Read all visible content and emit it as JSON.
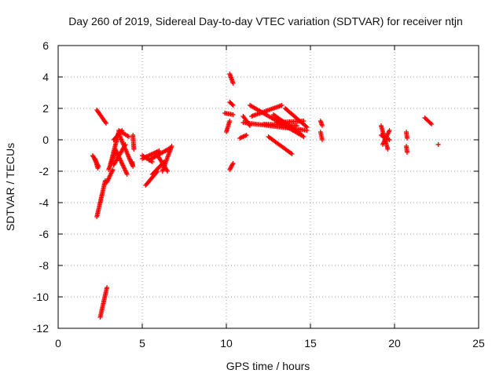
{
  "chart_data": {
    "type": "scatter",
    "title": "Day 260 of 2019, Sidereal Day-to-day VTEC variation (SDTVAR) for receiver ntjn",
    "xlabel": "GPS time / hours",
    "ylabel": "SDTVAR / TECUs",
    "xlim": [
      0,
      25
    ],
    "ylim": [
      -12,
      6
    ],
    "xticks": [
      0,
      5,
      10,
      15,
      20,
      25
    ],
    "yticks": [
      -12,
      -10,
      -8,
      -6,
      -4,
      -2,
      0,
      2,
      4,
      6
    ],
    "xtick_labels": [
      "0",
      "5",
      "10",
      "15",
      "20",
      "25"
    ],
    "ytick_labels": [
      "-12",
      "-10",
      "-8",
      "-6",
      "-4",
      "-2",
      "0",
      "2",
      "4",
      "6"
    ],
    "grid": true,
    "legend": "none",
    "marker": "+",
    "color": "#ff0000",
    "series": [
      {
        "name": "sdtvar",
        "segments": [
          {
            "x": [
              2.05,
              2.4
            ],
            "y": [
              -1.0,
              -1.7
            ]
          },
          {
            "x": [
              2.2,
              2.35
            ],
            "y": [
              -1.2,
              -1.8
            ]
          },
          {
            "x": [
              2.3,
              2.85
            ],
            "y": [
              1.9,
              1.05
            ]
          },
          {
            "x": [
              2.3,
              2.8
            ],
            "y": [
              -4.9,
              -2.6
            ]
          },
          {
            "x": [
              2.5,
              2.9
            ],
            "y": [
              -11.3,
              -9.4
            ]
          },
          {
            "x": [
              2.9,
              3.25
            ],
            "y": [
              -2.7,
              -1.9
            ]
          },
          {
            "x": [
              3.0,
              3.4
            ],
            "y": [
              -1.9,
              -0.8
            ]
          },
          {
            "x": [
              3.1,
              3.6
            ],
            "y": [
              -1.6,
              0.5
            ]
          },
          {
            "x": [
              3.3,
              3.8
            ],
            "y": [
              0.0,
              0.6
            ]
          },
          {
            "x": [
              3.6,
              4.2
            ],
            "y": [
              0.6,
              0.2
            ]
          },
          {
            "x": [
              3.4,
              4.1
            ],
            "y": [
              -0.6,
              -2.2
            ]
          },
          {
            "x": [
              3.6,
              4.4
            ],
            "y": [
              0.4,
              -1.6
            ]
          },
          {
            "x": [
              3.3,
              4.0
            ],
            "y": [
              -1.6,
              -0.3
            ]
          },
          {
            "x": [
              4.45,
              4.5
            ],
            "y": [
              0.3,
              -0.6
            ]
          },
          {
            "x": [
              4.4,
              4.45
            ],
            "y": [
              -1.4,
              -1.7
            ]
          },
          {
            "x": [
              5.0,
              5.6
            ],
            "y": [
              -1.0,
              -1.4
            ]
          },
          {
            "x": [
              5.2,
              5.9
            ],
            "y": [
              -2.9,
              -2.0
            ]
          },
          {
            "x": [
              5.4,
              6.7
            ],
            "y": [
              -1.3,
              -0.5
            ]
          },
          {
            "x": [
              5.8,
              6.5
            ],
            "y": [
              -0.8,
              -2.0
            ]
          },
          {
            "x": [
              5.6,
              6.3
            ],
            "y": [
              -2.2,
              -1.4
            ]
          },
          {
            "x": [
              5.0,
              6.0
            ],
            "y": [
              -1.2,
              -0.7
            ]
          },
          {
            "x": [
              6.2,
              6.75
            ],
            "y": [
              -2.0,
              -0.4
            ]
          },
          {
            "x": [
              9.9,
              10.4
            ],
            "y": [
              1.7,
              1.6
            ]
          },
          {
            "x": [
              10.0,
              10.2
            ],
            "y": [
              0.5,
              1.2
            ]
          },
          {
            "x": [
              10.2,
              10.4
            ],
            "y": [
              2.4,
              2.2
            ]
          },
          {
            "x": [
              10.2,
              10.4
            ],
            "y": [
              4.2,
              3.6
            ]
          },
          {
            "x": [
              10.2,
              10.4
            ],
            "y": [
              -1.9,
              -1.5
            ]
          },
          {
            "x": [
              10.8,
              11.2
            ],
            "y": [
              0.1,
              0.3
            ]
          },
          {
            "x": [
              11.0,
              11.4
            ],
            "y": [
              1.5,
              0.9
            ]
          },
          {
            "x": [
              11.0,
              14.8
            ],
            "y": [
              1.1,
              0.6
            ]
          },
          {
            "x": [
              11.4,
              14.6
            ],
            "y": [
              2.2,
              0.2
            ]
          },
          {
            "x": [
              11.5,
              13.3
            ],
            "y": [
              1.5,
              2.2
            ]
          },
          {
            "x": [
              12.2,
              14.2
            ],
            "y": [
              1.0,
              0.9
            ]
          },
          {
            "x": [
              12.5,
              13.9
            ],
            "y": [
              0.2,
              -0.9
            ]
          },
          {
            "x": [
              13.5,
              14.8
            ],
            "y": [
              2.0,
              0.8
            ]
          },
          {
            "x": [
              13.0,
              14.6
            ],
            "y": [
              1.1,
              1.2
            ]
          },
          {
            "x": [
              12.8,
              14.4
            ],
            "y": [
              1.6,
              0.4
            ]
          },
          {
            "x": [
              15.6,
              15.7
            ],
            "y": [
              1.2,
              0.9
            ]
          },
          {
            "x": [
              15.6,
              15.7
            ],
            "y": [
              0.5,
              0.0
            ]
          },
          {
            "x": [
              19.2,
              19.6
            ],
            "y": [
              0.9,
              -0.6
            ]
          },
          {
            "x": [
              19.2,
              19.7
            ],
            "y": [
              0.3,
              0.0
            ]
          },
          {
            "x": [
              19.3,
              19.7
            ],
            "y": [
              -0.3,
              0.6
            ]
          },
          {
            "x": [
              20.7,
              20.75
            ],
            "y": [
              0.5,
              0.1
            ]
          },
          {
            "x": [
              20.7,
              20.75
            ],
            "y": [
              -0.4,
              -0.8
            ]
          },
          {
            "x": [
              21.8,
              22.2
            ],
            "y": [
              1.4,
              1.0
            ]
          },
          {
            "x": [
              22.6,
              22.6
            ],
            "y": [
              -0.3,
              -0.3
            ]
          }
        ]
      }
    ]
  }
}
